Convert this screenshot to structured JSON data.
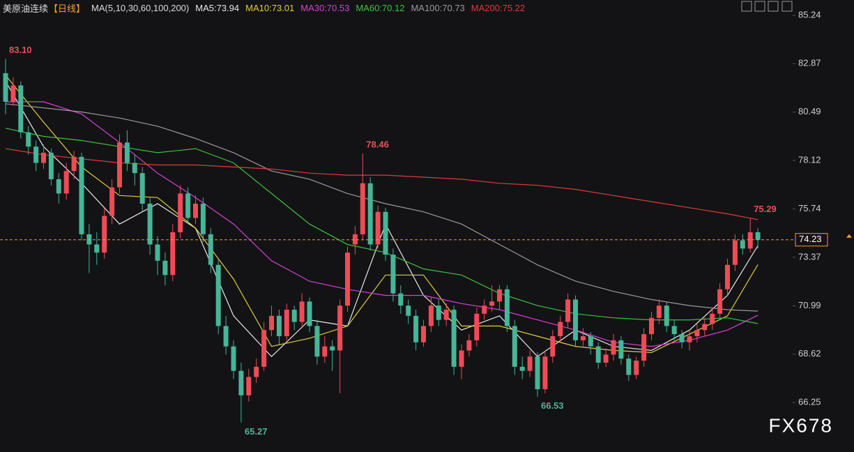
{
  "chart_data": {
    "type": "candlestick",
    "title": "美原油连续",
    "period": "【日线】",
    "ma_params": "MA(5,10,30,60,100,200)",
    "up_color": "#ef4b57",
    "down_color": "#46b598",
    "open": [
      82.4,
      81.0,
      81.8,
      79.5,
      78.8,
      78.0,
      78.5,
      77.2,
      76.5,
      77.6,
      78.3,
      74.5,
      74.0,
      73.6,
      75.4,
      76.8,
      79.0,
      78.0,
      77.5,
      76.0,
      74.0,
      73.2,
      72.5,
      74.6,
      76.5,
      75.3,
      76.0,
      74.5,
      73.0,
      70.0,
      69.0,
      67.8,
      66.6,
      67.5,
      68.0,
      69.8,
      70.5,
      69.5,
      70.8,
      70.2,
      71.2,
      70.0,
      68.5,
      69.0,
      68.8,
      71.0,
      74.0,
      74.5,
      77.0,
      74.0,
      75.6,
      73.5,
      71.6,
      71.0,
      70.5,
      69.2,
      70.0,
      71.0,
      70.3,
      70.8,
      68.0,
      68.8,
      69.3,
      70.6,
      71.0,
      71.2,
      71.8,
      70.0,
      68.0,
      67.8,
      68.5,
      66.9,
      68.5,
      69.5,
      70.2,
      71.3,
      69.3,
      69.5,
      69.0,
      68.2,
      68.6,
      69.3,
      68.4,
      67.6,
      68.3,
      69.6,
      70.4,
      71.0,
      70.0,
      69.6,
      69.2,
      69.5,
      69.8,
      70.1,
      70.6,
      71.8,
      73.0,
      74.2,
      73.8,
      74.6
    ],
    "high": [
      83.1,
      82.2,
      82.0,
      79.8,
      79.1,
      78.9,
      78.7,
      77.5,
      78.0,
      78.6,
      78.5,
      75.0,
      74.6,
      75.8,
      77.2,
      79.4,
      79.6,
      78.4,
      77.8,
      76.3,
      74.4,
      73.6,
      75.0,
      76.9,
      76.8,
      76.4,
      76.3,
      74.8,
      73.3,
      70.5,
      69.3,
      68.2,
      67.9,
      68.4,
      70.2,
      71.0,
      70.8,
      71.1,
      71.0,
      71.6,
      71.4,
      70.3,
      69.5,
      69.3,
      71.3,
      73.9,
      74.9,
      78.46,
      77.3,
      75.9,
      75.8,
      73.8,
      72.0,
      71.3,
      70.8,
      70.3,
      71.4,
      71.3,
      71.1,
      71.0,
      69.1,
      69.6,
      70.9,
      71.3,
      72.0,
      72.0,
      72.0,
      70.3,
      68.5,
      68.8,
      68.7,
      68.8,
      69.8,
      70.5,
      71.6,
      71.5,
      69.9,
      69.7,
      69.2,
      68.9,
      69.6,
      69.5,
      68.6,
      68.5,
      69.9,
      70.7,
      71.3,
      71.2,
      70.3,
      69.8,
      69.8,
      70.1,
      70.4,
      70.9,
      72.1,
      73.3,
      74.5,
      74.5,
      75.29,
      74.8
    ],
    "low": [
      80.4,
      80.8,
      79.2,
      78.4,
      77.6,
      77.7,
      76.9,
      76.0,
      76.2,
      77.2,
      74.2,
      72.6,
      73.0,
      73.3,
      75.0,
      76.5,
      77.6,
      76.9,
      75.6,
      73.5,
      72.5,
      72.0,
      72.2,
      74.3,
      75.0,
      75.0,
      74.1,
      72.6,
      69.6,
      68.6,
      67.4,
      65.27,
      66.3,
      67.2,
      67.8,
      69.5,
      69.1,
      69.3,
      69.8,
      70.0,
      69.7,
      68.1,
      68.2,
      67.8,
      66.7,
      70.7,
      73.5,
      74.2,
      73.7,
      73.8,
      73.2,
      71.2,
      70.6,
      70.1,
      68.8,
      69.0,
      69.7,
      70.0,
      70.0,
      67.6,
      67.4,
      68.5,
      69.0,
      70.3,
      70.7,
      70.8,
      69.7,
      67.6,
      67.4,
      67.5,
      66.53,
      66.7,
      68.2,
      69.2,
      69.9,
      69.0,
      69.0,
      68.6,
      67.9,
      68.0,
      68.3,
      68.1,
      67.3,
      67.4,
      68.0,
      69.3,
      70.1,
      69.7,
      69.3,
      68.9,
      68.8,
      69.2,
      69.5,
      69.8,
      70.4,
      71.5,
      72.7,
      73.5,
      73.6,
      73.8
    ],
    "close": [
      81.0,
      81.8,
      79.5,
      78.8,
      78.0,
      78.5,
      77.2,
      76.5,
      77.6,
      78.3,
      74.5,
      74.0,
      73.6,
      75.4,
      76.8,
      79.0,
      78.0,
      77.5,
      76.0,
      74.0,
      73.2,
      72.5,
      74.6,
      76.5,
      75.3,
      76.0,
      74.5,
      73.0,
      70.0,
      69.0,
      67.8,
      66.6,
      67.5,
      68.0,
      69.8,
      70.5,
      69.5,
      70.8,
      70.2,
      71.2,
      70.0,
      68.5,
      69.0,
      68.8,
      71.0,
      73.6,
      74.5,
      77.0,
      74.0,
      75.6,
      73.5,
      71.6,
      71.0,
      70.5,
      69.2,
      70.0,
      71.0,
      70.3,
      70.8,
      68.0,
      68.8,
      69.3,
      70.6,
      71.0,
      71.2,
      71.8,
      70.0,
      68.0,
      67.8,
      68.5,
      66.9,
      68.5,
      69.5,
      70.2,
      71.3,
      69.3,
      69.5,
      69.0,
      68.2,
      68.6,
      69.3,
      68.4,
      67.6,
      68.3,
      69.6,
      70.4,
      71.0,
      70.0,
      69.6,
      69.2,
      69.5,
      69.8,
      70.1,
      70.6,
      71.8,
      73.0,
      74.2,
      73.8,
      74.6,
      74.23
    ],
    "ylim": [
      63.82,
      85.99
    ],
    "yticks": [
      85.24,
      82.87,
      80.49,
      78.12,
      75.74,
      73.37,
      70.99,
      68.62,
      66.25
    ],
    "ma_x": [
      0,
      5,
      10,
      15,
      20,
      25,
      30,
      35,
      40,
      45,
      50,
      55,
      60,
      65,
      70,
      75,
      80,
      85,
      90,
      95,
      99
    ],
    "series": [
      {
        "name": "MA5:73.94",
        "color": "#e8e8e8",
        "values": [
          82.0,
          78.8,
          77.0,
          75.0,
          76.0,
          74.8,
          70.5,
          68.5,
          70.3,
          70.0,
          75.0,
          71.5,
          69.8,
          70.5,
          68.5,
          69.8,
          69.0,
          68.8,
          69.8,
          71.5,
          73.94
        ]
      },
      {
        "name": "MA10:73.01",
        "color": "#e2d03a",
        "values": [
          82.3,
          80.0,
          77.8,
          76.4,
          76.3,
          74.8,
          72.3,
          69.0,
          69.4,
          70.0,
          72.5,
          72.5,
          70.0,
          70.0,
          69.5,
          69.0,
          68.8,
          68.7,
          69.6,
          70.5,
          73.01
        ]
      },
      {
        "name": "MA30:70.53",
        "color": "#d840d8",
        "values": [
          81.0,
          81.0,
          80.4,
          79.0,
          77.5,
          76.3,
          75.0,
          73.2,
          72.2,
          71.8,
          71.5,
          71.5,
          71.1,
          70.8,
          70.3,
          69.8,
          69.2,
          69.0,
          69.3,
          69.8,
          70.53
        ]
      },
      {
        "name": "MA60:70.12",
        "color": "#3cc43c",
        "values": [
          79.7,
          79.3,
          79.1,
          78.8,
          78.5,
          78.7,
          78.0,
          76.5,
          75.0,
          74.0,
          73.6,
          72.8,
          72.5,
          71.6,
          71.0,
          70.6,
          70.4,
          70.3,
          70.3,
          70.4,
          70.12
        ]
      },
      {
        "name": "MA100:70.73",
        "color": "#9a9a9a",
        "values": [
          80.9,
          80.7,
          80.5,
          80.2,
          79.8,
          79.2,
          78.5,
          77.6,
          77.2,
          76.5,
          76.0,
          75.6,
          75.0,
          74.0,
          73.0,
          72.2,
          71.7,
          71.3,
          71.0,
          70.8,
          70.73
        ]
      },
      {
        "name": "MA200:75.22",
        "color": "#e03a3a",
        "values": [
          78.7,
          78.4,
          78.2,
          78.0,
          77.9,
          77.9,
          77.8,
          77.7,
          77.5,
          77.4,
          77.4,
          77.3,
          77.2,
          77.0,
          76.9,
          76.7,
          76.4,
          76.1,
          75.8,
          75.5,
          75.22
        ]
      }
    ],
    "annotations": [
      {
        "label": "83.10",
        "value": 83.1,
        "x": 0,
        "color": "#e8505a"
      },
      {
        "label": "78.46",
        "value": 78.46,
        "x": 47,
        "color": "#e8505a"
      },
      {
        "label": "65.27",
        "value": 65.27,
        "x": 31,
        "color": "#4cb69a"
      },
      {
        "label": "66.53",
        "value": 66.53,
        "x": 70,
        "color": "#4cb69a"
      },
      {
        "label": "75.29",
        "value": 75.29,
        "x": 98,
        "color": "#e8505a"
      }
    ],
    "last_price": {
      "value": 74.23,
      "label": "74.23",
      "color": "#f0a030"
    },
    "watermark": "FX678"
  }
}
